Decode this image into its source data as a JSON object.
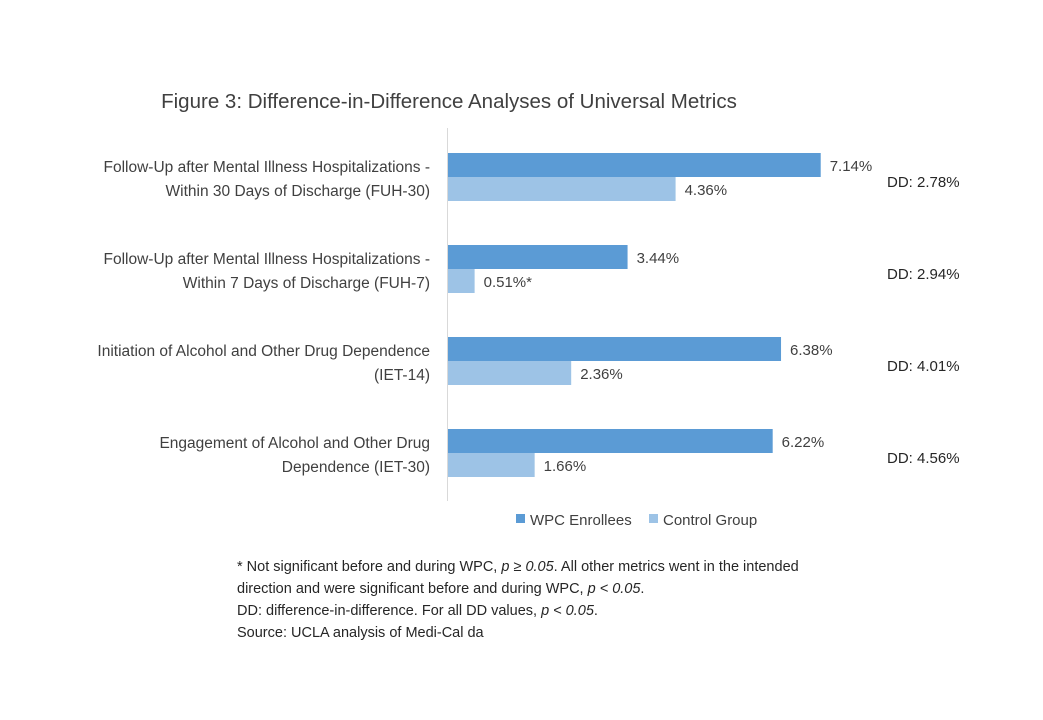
{
  "chart_data": {
    "type": "bar",
    "orientation": "horizontal",
    "title": "Figure 3: Difference-in-Difference Analyses of Universal Metrics",
    "categories": [
      [
        "Follow-Up after Mental Illness Hospitalizations -",
        "Within 30 Days of Discharge (FUH-30)"
      ],
      [
        "Follow-Up after Mental Illness Hospitalizations -",
        "Within 7 Days of Discharge (FUH-7)"
      ],
      [
        "Initiation of Alcohol and Other Drug Dependence",
        "(IET-14)"
      ],
      [
        "Engagement of Alcohol and Other Drug",
        "Dependence (IET-30)"
      ]
    ],
    "series": [
      {
        "name": "WPC Enrollees",
        "color": "#5b9bd5",
        "values": [
          7.14,
          3.44,
          6.38,
          6.22
        ],
        "labels": [
          "7.14%",
          "3.44%",
          "6.38%",
          "6.22%"
        ]
      },
      {
        "name": "Control Group",
        "color": "#9dc3e6",
        "values": [
          4.36,
          0.51,
          2.36,
          1.66
        ],
        "labels": [
          "4.36%",
          "0.51%*",
          "2.36%",
          "1.66%"
        ]
      }
    ],
    "dd_labels": [
      "DD: 2.78%",
      "DD: 2.94%",
      "DD: 4.01%",
      "DD: 4.56%"
    ],
    "xlim": [
      0,
      8
    ],
    "grid": false,
    "legend_position": "bottom"
  },
  "notes": {
    "line1_a": "* Not significant before and during  WPC, ",
    "line1_p": "p ≥ 0.05",
    "line1_b": ". All other metrics went in the intended",
    "line2_a": "direction and were significant before and during  WPC, ",
    "line2_p": "p < 0.05",
    "line2_b": ".",
    "line3_a": "DD: difference-in-difference. For all DD values, ",
    "line3_p": "p < 0.05",
    "line3_b": ".",
    "line4": "Source: UCLA analysis of Medi-Cal da"
  }
}
